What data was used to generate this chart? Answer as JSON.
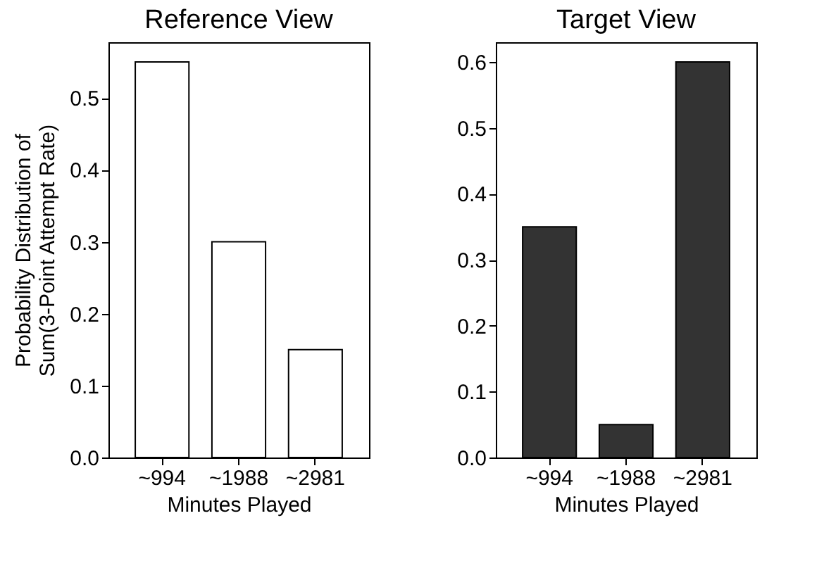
{
  "chart_data": [
    {
      "type": "bar",
      "title": "Reference View",
      "xlabel": "Minutes Played",
      "ylabel": "Probability Distribution of\nSum(3-Point Attempt Rate)",
      "categories": [
        "~994",
        "~1988",
        "~2981"
      ],
      "values": [
        0.55,
        0.3,
        0.15
      ],
      "color": "#ffffff",
      "ylim": [
        0,
        0.5775
      ],
      "yticks": [
        {
          "value": 0,
          "label": "0.0"
        },
        0.1,
        0.2,
        0.3,
        0.4,
        0.5
      ],
      "grid": false
    },
    {
      "type": "bar",
      "title": "Target View",
      "xlabel": "Minutes Played",
      "categories": [
        "~994",
        "~1988",
        "~2981"
      ],
      "values": [
        0.35,
        0.05,
        0.6
      ],
      "color": "#333333",
      "ylim": [
        0,
        0.63
      ],
      "yticks": [
        {
          "value": 0,
          "label": "0.0"
        },
        0.1,
        0.2,
        0.3,
        0.4,
        0.5,
        0.6
      ],
      "grid": false
    }
  ]
}
